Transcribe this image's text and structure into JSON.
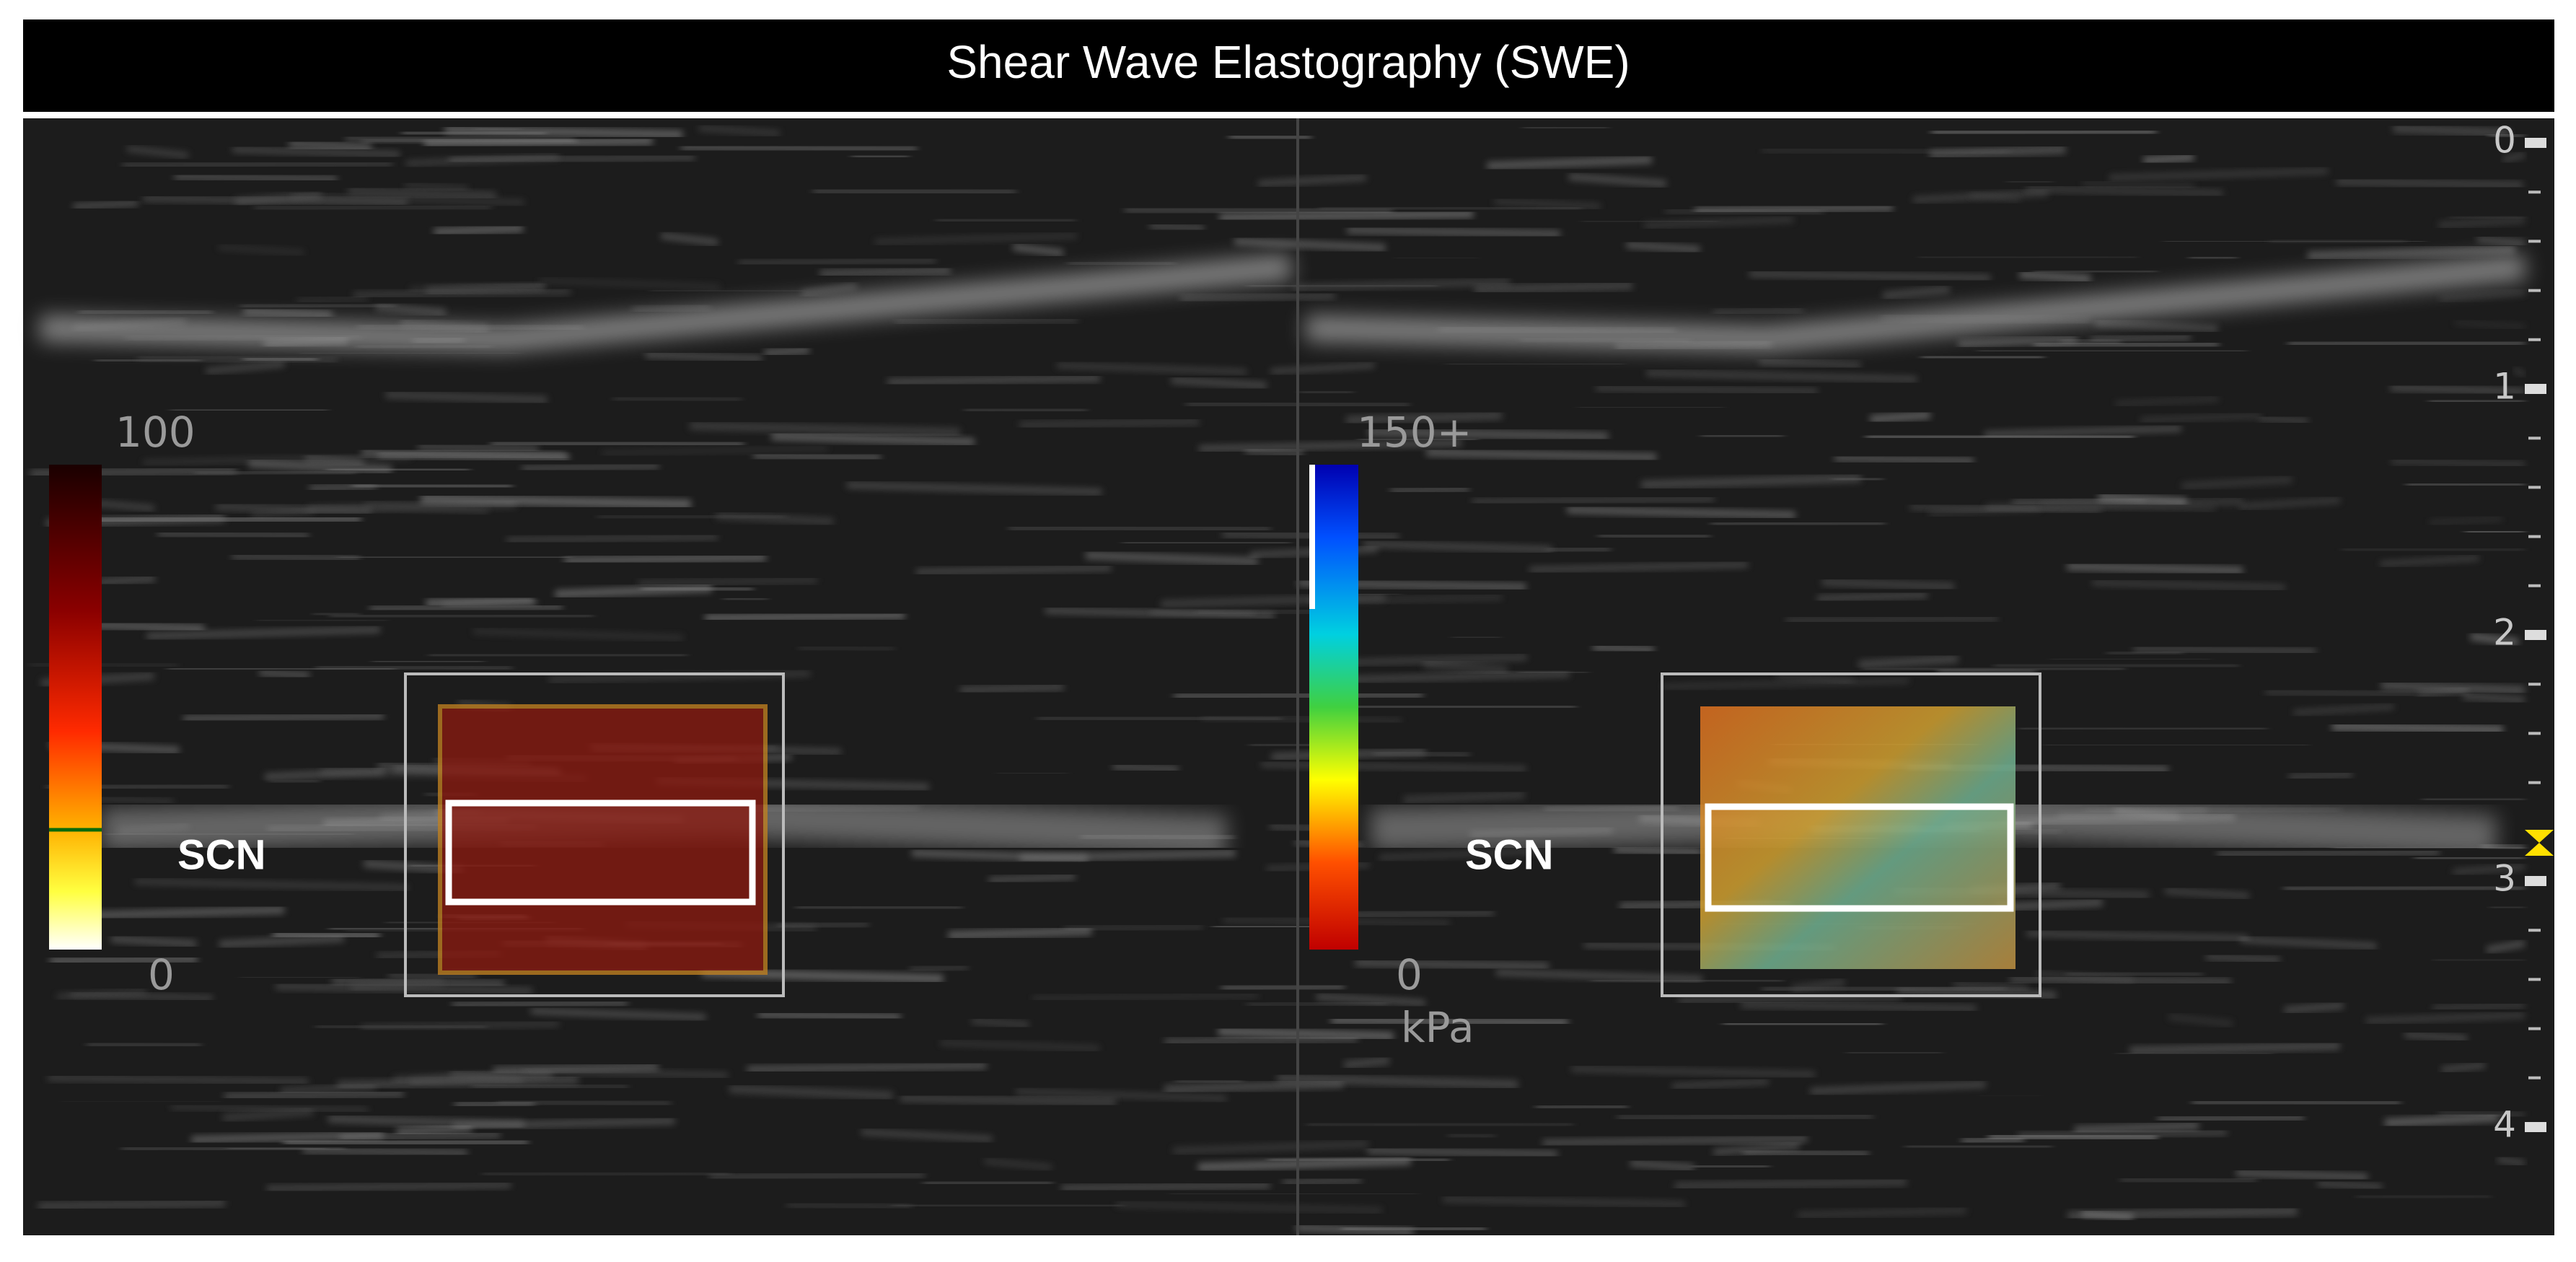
{
  "header": {
    "title": "Shear Wave Elastography (SWE)"
  },
  "panels": [
    {
      "scale_max": "100",
      "scale_min": "0",
      "label": "SCN"
    },
    {
      "scale_max": "150+",
      "scale_min": "0",
      "unit": "kPa",
      "label": "SCN"
    }
  ],
  "depth_scale": [
    "0",
    "1",
    "2",
    "3",
    "4"
  ]
}
